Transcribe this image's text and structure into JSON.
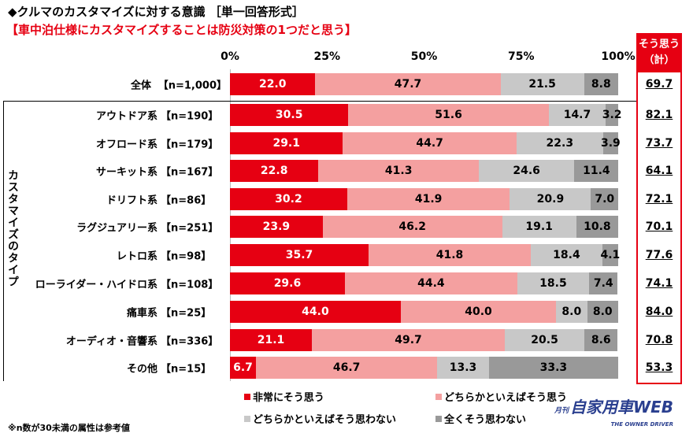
{
  "title": "◆クルマのカスタマイズに対する意識 ［単一回答形式］",
  "subtitle": "【車中泊仕様にカスタマイズすることは防災対策の1つだと思う】",
  "chart_data": {
    "type": "bar",
    "orientation": "horizontal-stacked-100",
    "xlim": [
      0,
      100
    ],
    "ticks": [
      "0%",
      "25%",
      "50%",
      "75%",
      "100%"
    ],
    "group_label": "カスタマイズのタイプ",
    "sum_header": [
      "そう思う",
      "（計）"
    ],
    "colors": [
      "#e60012",
      "#f4a0a0",
      "#c8c8c8",
      "#999999"
    ],
    "series_names": [
      "非常にそう思う",
      "どちらかといえばそう思う",
      "どちらかといえばそう思わない",
      "全くそう思わない"
    ],
    "rows": [
      {
        "label": "全体",
        "n": "【n=1,000】",
        "values": [
          22.0,
          47.7,
          21.5,
          8.8
        ],
        "sum": "69.7"
      },
      {
        "label": "アウトドア系",
        "n": "【n=190】",
        "values": [
          30.5,
          51.6,
          14.7,
          3.2
        ],
        "sum": "82.1"
      },
      {
        "label": "オフロード系",
        "n": "【n=179】",
        "values": [
          29.1,
          44.7,
          22.3,
          3.9
        ],
        "sum": "73.7"
      },
      {
        "label": "サーキット系",
        "n": "【n=167】",
        "values": [
          22.8,
          41.3,
          24.6,
          11.4
        ],
        "sum": "64.1"
      },
      {
        "label": "ドリフト系",
        "n": "【n=86】",
        "values": [
          30.2,
          41.9,
          20.9,
          7.0
        ],
        "sum": "72.1"
      },
      {
        "label": "ラグジュアリー系",
        "n": "【n=251】",
        "values": [
          23.9,
          46.2,
          19.1,
          10.8
        ],
        "sum": "70.1"
      },
      {
        "label": "レトロ系",
        "n": "【n=98】",
        "values": [
          35.7,
          41.8,
          18.4,
          4.1
        ],
        "sum": "77.6"
      },
      {
        "label": "ローライダー・ハイドロ系",
        "n": "【n=108】",
        "values": [
          29.6,
          44.4,
          18.5,
          7.4
        ],
        "sum": "74.1"
      },
      {
        "label": "痛車系",
        "n": "【n=25】",
        "values": [
          44.0,
          40.0,
          8.0,
          8.0
        ],
        "sum": "84.0"
      },
      {
        "label": "オーディオ・音響系",
        "n": "【n=336】",
        "values": [
          21.1,
          49.7,
          20.5,
          8.6
        ],
        "sum": "70.8"
      },
      {
        "label": "その他",
        "n": "【n=15】",
        "values": [
          6.7,
          46.7,
          13.3,
          33.3
        ],
        "sum": "53.3"
      }
    ]
  },
  "footnote": "※n数が30未満の属性は参考値",
  "logo": {
    "text": "自家用車WEB",
    "prefix": "月刊",
    "tagline": "THE OWNER DRIVER"
  }
}
